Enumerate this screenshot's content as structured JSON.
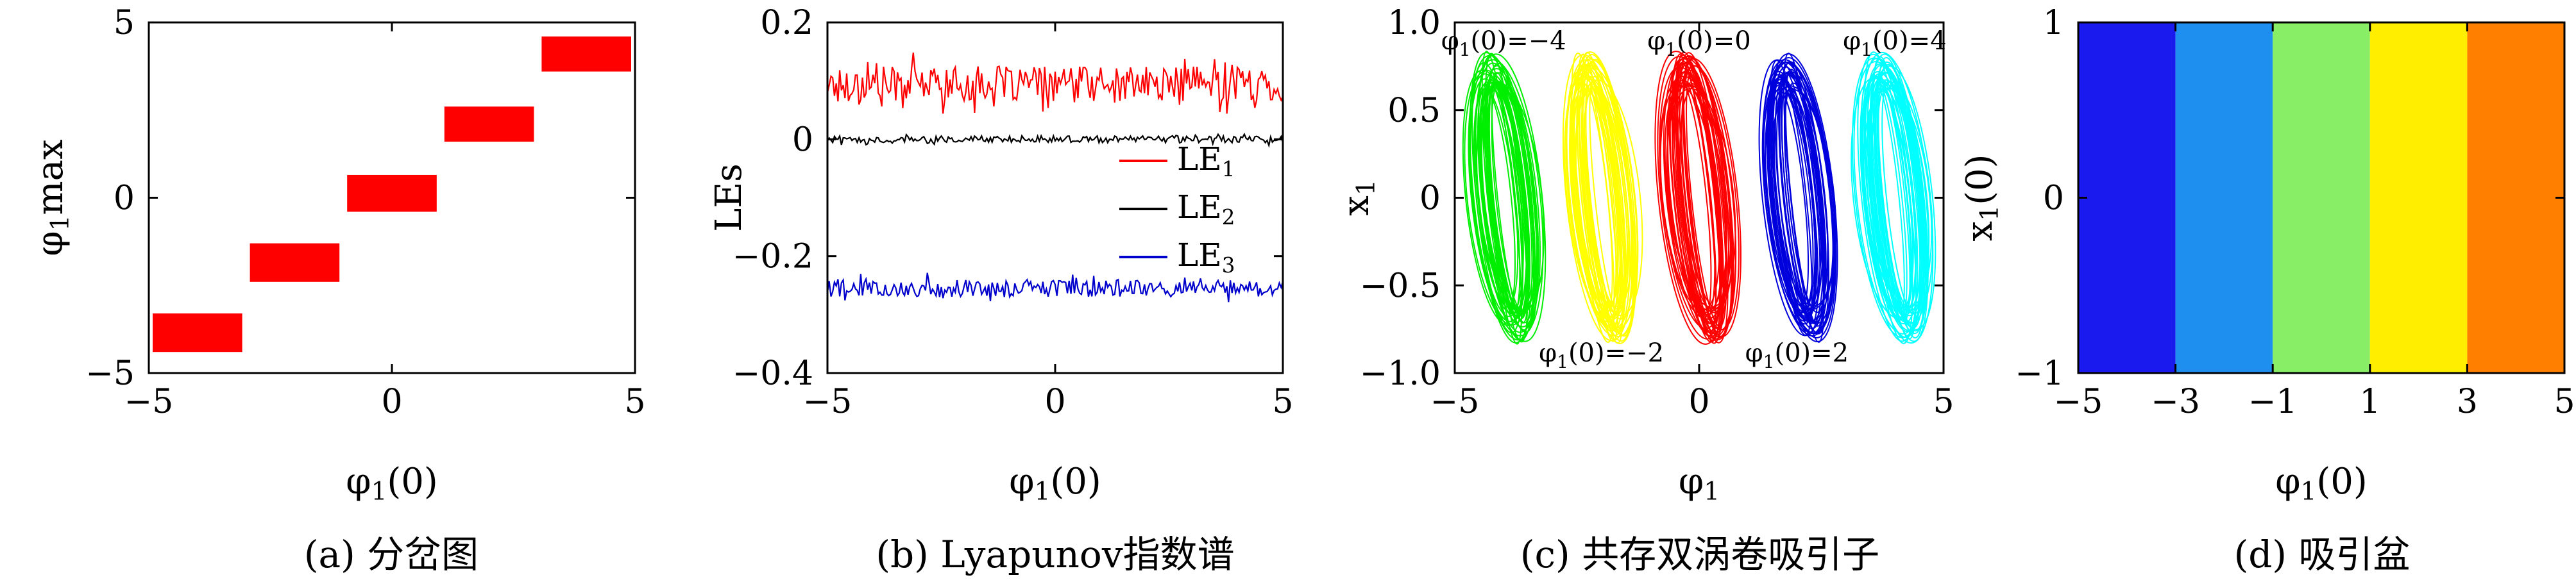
{
  "chart_data": [
    {
      "type": "bar",
      "subtype": "bifurcation-bands",
      "caption": "(a) 分岔图",
      "xlabel": "φ1(0)",
      "ylabel": "φ1max",
      "xlim": [
        -5,
        5
      ],
      "ylim": [
        -5,
        5
      ],
      "xticks": [
        "−5",
        "0",
        "5"
      ],
      "yticks": [
        "5",
        "0",
        "−5"
      ],
      "color": "#ff0000",
      "bands": [
        {
          "x": [
            -5,
            -3
          ],
          "y": [
            -4.4,
            -3.3
          ]
        },
        {
          "x": [
            -3,
            -1
          ],
          "y": [
            -2.4,
            -1.3
          ]
        },
        {
          "x": [
            -1,
            1
          ],
          "y": [
            -0.4,
            0.65
          ]
        },
        {
          "x": [
            1,
            3
          ],
          "y": [
            1.6,
            2.6
          ]
        },
        {
          "x": [
            3,
            5
          ],
          "y": [
            3.6,
            4.6
          ]
        }
      ]
    },
    {
      "type": "line",
      "caption": "(b) Lyapunov指数谱",
      "xlabel": "φ1(0)",
      "ylabel": "LEs",
      "xlim": [
        -5,
        5
      ],
      "ylim": [
        -0.4,
        0.2
      ],
      "xticks": [
        "−5",
        "0",
        "5"
      ],
      "yticks": [
        "0.2",
        "0",
        "−0.2",
        "−0.4"
      ],
      "series": [
        {
          "name": "LE1",
          "base": "LE",
          "sub": "1",
          "color": "#ff0000",
          "mean": 0.095,
          "amp": 0.03
        },
        {
          "name": "LE2",
          "base": "LE",
          "sub": "2",
          "color": "#000000",
          "mean": 0.0,
          "amp": 0.006
        },
        {
          "name": "LE3",
          "base": "LE",
          "sub": "3",
          "color": "#0000cc",
          "mean": -0.255,
          "amp": 0.015
        }
      ]
    },
    {
      "type": "scatter",
      "subtype": "phase-portrait",
      "caption": "(c) 共存双涡卷吸引子",
      "xlabel": "φ1",
      "ylabel": "x1",
      "xlim": [
        -5,
        5
      ],
      "ylim": [
        -1.0,
        1.0
      ],
      "xticks": [
        "−5",
        "0",
        "5"
      ],
      "yticks": [
        "1.0",
        "0.5",
        "0",
        "−0.5",
        "−1.0"
      ],
      "attractors": [
        {
          "label": "φ1(0)=−4",
          "center": -4.0,
          "color": "#00ee00",
          "label_pos": "top"
        },
        {
          "label": "φ1(0)=−2",
          "center": -2.0,
          "color": "#ffff00",
          "label_pos": "bottom"
        },
        {
          "label": "φ1(0)=0",
          "center": 0.0,
          "color": "#ff0000",
          "label_pos": "top"
        },
        {
          "label": "φ1(0)=2",
          "center": 2.0,
          "color": "#0000dd",
          "label_pos": "bottom"
        },
        {
          "label": "φ1(0)=4",
          "center": 4.0,
          "color": "#00ffff",
          "label_pos": "top"
        }
      ]
    },
    {
      "type": "heatmap",
      "subtype": "basin-of-attraction",
      "caption": "(d) 吸引盆",
      "xlabel": "φ1(0)",
      "ylabel": "x1(0)",
      "xlim": [
        -5,
        5
      ],
      "ylim": [
        -1,
        1
      ],
      "xticks": [
        "−5",
        "−3",
        "−1",
        "1",
        "3",
        "5"
      ],
      "yticks": [
        "1",
        "0",
        "−1"
      ],
      "regions": [
        {
          "x": [
            -5,
            -3
          ],
          "color": "#1a1aee"
        },
        {
          "x": [
            -3,
            -1
          ],
          "color": "#1e8fee"
        },
        {
          "x": [
            -1,
            1
          ],
          "color": "#88ee66"
        },
        {
          "x": [
            1,
            3
          ],
          "color": "#ffee00"
        },
        {
          "x": [
            3,
            5
          ],
          "color": "#ff8000"
        }
      ]
    }
  ]
}
